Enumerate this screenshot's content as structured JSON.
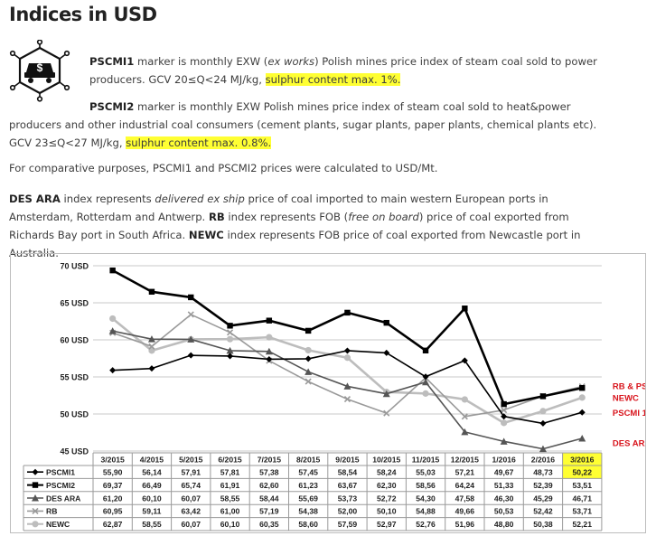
{
  "page": {
    "title": "Indices in USD",
    "p1_name": "PSCMI1",
    "p1_text": " marker is monthly EXW (",
    "p1_ital": "ex works",
    "p1_text2": ") Polish mines price index of steam coal sold to power producers. GCV 20≤Q<24 MJ/kg, ",
    "p1_hl": "sulphur content max. 1%.",
    "p2_name": "PSCMI2",
    "p2_text": " marker is monthly EXW Polish mines price index of steam coal sold to heat&power producers and other industrial coal consumers (cement plants, sugar plants, paper plants, chemical plants etc). GCV 23≤Q<27 MJ/kg, ",
    "p2_hl": "sulphur content max. 0.8%.",
    "p3_text": "For comparative purposes, PSCMI1 and PSCMI2 prices were calculated to USD/Mt.",
    "p4_name1": "DES ARA",
    "p4_t1": " index represents ",
    "p4_i1": "delivered ex ship",
    "p4_t2": " price of coal imported to main western European ports in Amsterdam, Rotterdam and Antwerp. ",
    "p4_name2": "RB",
    "p4_t3": " index represents FOB (",
    "p4_i2": "free on board",
    "p4_t4": ") price of coal exported from Richards Bay port in South Africa. ",
    "p4_name3": "NEWC",
    "p4_t5": " index represents FOB price of coal exported from Newcastle port in Australia."
  },
  "icon": "coal-dollar-icon",
  "chart_data": {
    "type": "line",
    "categories": [
      "3/2015",
      "4/2015",
      "5/2015",
      "6/2015",
      "7/2015",
      "8/2015",
      "9/2015",
      "10/2015",
      "11/2015",
      "12/2015",
      "1/2016",
      "2/2016",
      "3/2016"
    ],
    "yticks": [
      "45 USD",
      "50 USD",
      "55 USD",
      "60 USD",
      "65 USD",
      "70 USD"
    ],
    "ylim": [
      45,
      70
    ],
    "series": [
      {
        "name": "PSCMI1",
        "color": "#000000",
        "marker": "diamond",
        "width": 1.6,
        "values": [
          55.9,
          56.14,
          57.91,
          57.81,
          57.38,
          57.45,
          58.54,
          58.24,
          55.03,
          57.21,
          49.67,
          48.73,
          50.22
        ],
        "labels": [
          "55,90",
          "56,14",
          "57,91",
          "57,81",
          "57,38",
          "57,45",
          "58,54",
          "58,24",
          "55,03",
          "57,21",
          "49,67",
          "48,73",
          "50,22"
        ]
      },
      {
        "name": "PSCMI2",
        "color": "#000000",
        "marker": "square",
        "width": 2.6,
        "values": [
          69.37,
          66.49,
          65.74,
          61.91,
          62.6,
          61.23,
          63.67,
          62.3,
          58.56,
          64.24,
          51.33,
          52.39,
          53.51
        ],
        "labels": [
          "69,37",
          "66,49",
          "65,74",
          "61,91",
          "62,60",
          "61,23",
          "63,67",
          "62,30",
          "58,56",
          "64,24",
          "51,33",
          "52,39",
          "53,51"
        ]
      },
      {
        "name": "DES ARA",
        "color": "#555555",
        "marker": "triangle",
        "width": 1.6,
        "values": [
          61.2,
          60.1,
          60.07,
          58.55,
          58.44,
          55.69,
          53.73,
          52.72,
          54.3,
          47.58,
          46.3,
          45.29,
          46.71
        ],
        "labels": [
          "61,20",
          "60,10",
          "60,07",
          "58,55",
          "58,44",
          "55,69",
          "53,73",
          "52,72",
          "54,30",
          "47,58",
          "46,30",
          "45,29",
          "46,71"
        ]
      },
      {
        "name": "RB",
        "color": "#9a9a9a",
        "marker": "cross",
        "width": 1.6,
        "values": [
          60.95,
          59.11,
          63.42,
          61.0,
          57.19,
          54.38,
          52.0,
          50.1,
          54.88,
          49.66,
          50.53,
          52.42,
          53.71
        ],
        "labels": [
          "60,95",
          "59,11",
          "63,42",
          "61,00",
          "57,19",
          "54,38",
          "52,00",
          "50,10",
          "54,88",
          "49,66",
          "50,53",
          "52,42",
          "53,71"
        ]
      },
      {
        "name": "NEWC",
        "color": "#bdbdbd",
        "marker": "circle",
        "width": 2.6,
        "values": [
          62.87,
          58.55,
          60.07,
          60.1,
          60.35,
          58.6,
          57.59,
          52.97,
          52.76,
          51.96,
          48.8,
          50.38,
          52.21
        ],
        "labels": [
          "62,87",
          "58,55",
          "60,07",
          "60,10",
          "60,35",
          "58,60",
          "57,59",
          "52,97",
          "52,76",
          "51,96",
          "48,80",
          "50,38",
          "52,21"
        ]
      }
    ],
    "annotations": [
      {
        "text": "RB & PSCMI 2",
        "value": 53.8
      },
      {
        "text": "NEWC",
        "value": 52.2
      },
      {
        "text": "PSCMI 1",
        "value": 50.2
      },
      {
        "text": "DES ARA",
        "value": 46.1
      }
    ],
    "annotation_color": "#d8141c",
    "highlight_color": "#ffff33",
    "highlight_category": "3/2016",
    "highlight_series": "PSCMI1",
    "grid": true
  }
}
